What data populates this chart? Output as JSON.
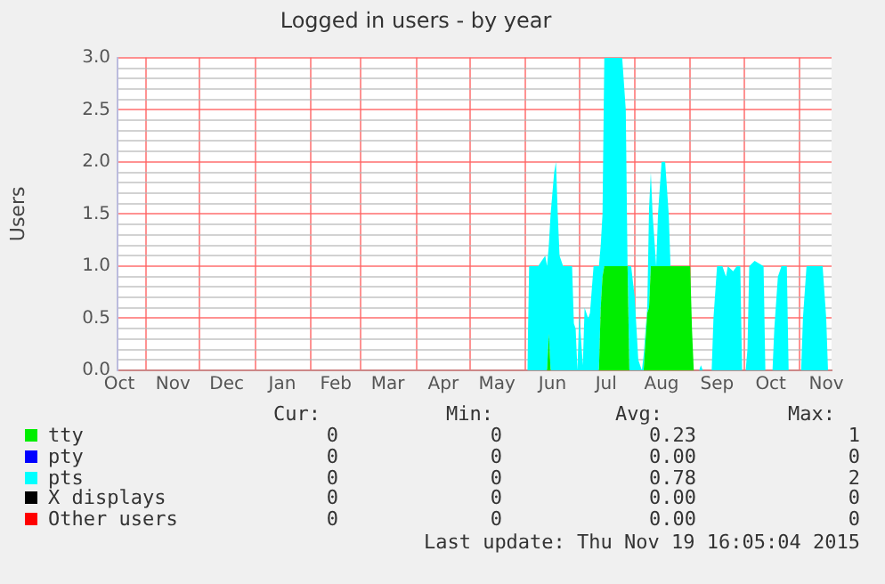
{
  "chart_data": {
    "type": "area",
    "title": "Logged in users - by year",
    "ylabel": "Users",
    "stacked": true,
    "grid": true,
    "legend": "bottom",
    "xlim": [
      "2014-10-16",
      "2015-11-19"
    ],
    "xticks": [
      {
        "value": "2014-10-17",
        "label": "Oct"
      },
      {
        "value": "2014-11-01",
        "label": null
      },
      {
        "value": "2014-11-16",
        "label": "Nov"
      },
      {
        "value": "2014-12-01",
        "label": null
      },
      {
        "value": "2014-12-16",
        "label": "Dec"
      },
      {
        "value": "2015-01-01",
        "label": null
      },
      {
        "value": "2015-01-16",
        "label": "Jan"
      },
      {
        "value": "2015-02-01",
        "label": null
      },
      {
        "value": "2015-02-15",
        "label": "Feb"
      },
      {
        "value": "2015-03-01",
        "label": null
      },
      {
        "value": "2015-03-16",
        "label": "Mar"
      },
      {
        "value": "2015-04-01",
        "label": null
      },
      {
        "value": "2015-04-16",
        "label": "Apr"
      },
      {
        "value": "2015-05-01",
        "label": null
      },
      {
        "value": "2015-05-16",
        "label": "May"
      },
      {
        "value": "2015-06-01",
        "label": null
      },
      {
        "value": "2015-06-16",
        "label": "Jun"
      },
      {
        "value": "2015-07-01",
        "label": null
      },
      {
        "value": "2015-07-16",
        "label": "Jul"
      },
      {
        "value": "2015-08-01",
        "label": null
      },
      {
        "value": "2015-08-16",
        "label": "Aug"
      },
      {
        "value": "2015-09-01",
        "label": null
      },
      {
        "value": "2015-09-16",
        "label": "Sep"
      },
      {
        "value": "2015-10-01",
        "label": null
      },
      {
        "value": "2015-10-16",
        "label": "Oct"
      },
      {
        "value": "2015-11-01",
        "label": null
      },
      {
        "value": "2015-11-16",
        "label": "Nov"
      }
    ],
    "ylim": [
      0,
      3
    ],
    "yticks": [
      {
        "value": 0,
        "label": "0.0"
      },
      {
        "value": 0.1,
        "label": null
      },
      {
        "value": 0.2,
        "label": null
      },
      {
        "value": 0.3,
        "label": null
      },
      {
        "value": 0.4,
        "label": null
      },
      {
        "value": 0.5,
        "label": "0.5"
      },
      {
        "value": 0.6,
        "label": null
      },
      {
        "value": 0.7,
        "label": null
      },
      {
        "value": 0.8,
        "label": null
      },
      {
        "value": 0.9,
        "label": null
      },
      {
        "value": 1,
        "label": "1.0"
      },
      {
        "value": 1.1,
        "label": null
      },
      {
        "value": 1.2,
        "label": null
      },
      {
        "value": 1.3,
        "label": null
      },
      {
        "value": 1.4,
        "label": null
      },
      {
        "value": 1.5,
        "label": "1.5"
      },
      {
        "value": 1.6,
        "label": null
      },
      {
        "value": 1.7,
        "label": null
      },
      {
        "value": 1.8,
        "label": null
      },
      {
        "value": 1.9,
        "label": null
      },
      {
        "value": 2,
        "label": "2.0"
      },
      {
        "value": 2.1,
        "label": null
      },
      {
        "value": 2.2,
        "label": null
      },
      {
        "value": 2.3,
        "label": null
      },
      {
        "value": 2.4,
        "label": null
      },
      {
        "value": 2.5,
        "label": "2.5"
      },
      {
        "value": 2.6,
        "label": null
      },
      {
        "value": 2.7,
        "label": null
      },
      {
        "value": 2.8,
        "label": null
      },
      {
        "value": 2.9,
        "label": null
      },
      {
        "value": 3,
        "label": "3.0"
      }
    ],
    "x": [
      "2015-06-02",
      "2015-06-03",
      "2015-06-08",
      "2015-06-10",
      "2015-06-12",
      "2015-06-13",
      "2015-06-14",
      "2015-06-15",
      "2015-06-17",
      "2015-06-18",
      "2015-06-19",
      "2015-06-20",
      "2015-06-22",
      "2015-06-27",
      "2015-06-28",
      "2015-06-29",
      "2015-06-30",
      "2015-07-01",
      "2015-07-03",
      "2015-07-04",
      "2015-07-06",
      "2015-07-07",
      "2015-07-09",
      "2015-07-12",
      "2015-07-13",
      "2015-07-14",
      "2015-07-15",
      "2015-07-25",
      "2015-07-27",
      "2015-07-28",
      "2015-07-29",
      "2015-07-30",
      "2015-08-01",
      "2015-08-02",
      "2015-08-03",
      "2015-08-05",
      "2015-08-06",
      "2015-08-08",
      "2015-08-09",
      "2015-08-10",
      "2015-08-11",
      "2015-08-13",
      "2015-08-14",
      "2015-08-16",
      "2015-08-18",
      "2015-08-20",
      "2015-08-21",
      "2015-09-01",
      "2015-09-02",
      "2015-09-03",
      "2015-09-06",
      "2015-09-07",
      "2015-09-08",
      "2015-09-13",
      "2015-09-14",
      "2015-09-16",
      "2015-09-19",
      "2015-09-21",
      "2015-09-22",
      "2015-09-25",
      "2015-09-27",
      "2015-09-29",
      "2015-09-30",
      "2015-10-02",
      "2015-10-03",
      "2015-10-04",
      "2015-10-07",
      "2015-10-12",
      "2015-10-13",
      "2015-10-17",
      "2015-10-18",
      "2015-10-20",
      "2015-10-22",
      "2015-10-25",
      "2015-10-26",
      "2015-11-02",
      "2015-11-03",
      "2015-11-05",
      "2015-11-14",
      "2015-11-16",
      "2015-11-17",
      "2015-11-19"
    ],
    "series": [
      {
        "name": "tty",
        "color": "#00ee00",
        "values": [
          0,
          0,
          0,
          0,
          0,
          0,
          0.35,
          0,
          0,
          0,
          0,
          0,
          0,
          0,
          0,
          0,
          0,
          0,
          0,
          0,
          0,
          0,
          0,
          0,
          0.6,
          0.9,
          1,
          1,
          1,
          1,
          0,
          0,
          0,
          0,
          0,
          0,
          0,
          0.55,
          0.6,
          1,
          1,
          1,
          1,
          1,
          1,
          1,
          1,
          1,
          0.4,
          0,
          0,
          0,
          0,
          0,
          0,
          0,
          0,
          0,
          0,
          0,
          0,
          0,
          0,
          0,
          0,
          0,
          0,
          0,
          0,
          0,
          0,
          0,
          0,
          0,
          0,
          0,
          0,
          0,
          0,
          0,
          0,
          0
        ]
      },
      {
        "name": "pty",
        "color": "#0000ff",
        "values": [
          null,
          null,
          null,
          null,
          null,
          null,
          null,
          null,
          null,
          null,
          null,
          null,
          null,
          null,
          null,
          null,
          null,
          null,
          null,
          null,
          null,
          null,
          null,
          null,
          null,
          null,
          null,
          null,
          null,
          null,
          null,
          null,
          null,
          null,
          null,
          null,
          null,
          null,
          null,
          null,
          null,
          null,
          null,
          null,
          null,
          null,
          null,
          null,
          null,
          null,
          null,
          null,
          null,
          null,
          null,
          null,
          null,
          null,
          null,
          null,
          null,
          null,
          null,
          null,
          null,
          null,
          null,
          null,
          null,
          null,
          null,
          null,
          null,
          null,
          null,
          null,
          null,
          null,
          null,
          null,
          null,
          null
        ]
      },
      {
        "name": "pts",
        "color": "#00ffff",
        "values": [
          0,
          1,
          1,
          1.05,
          1.1,
          1,
          0.85,
          1.5,
          1.9,
          2,
          1.5,
          1.1,
          1,
          1,
          0.45,
          0.4,
          0,
          0.55,
          0.05,
          0.6,
          0.5,
          0.55,
          1,
          1,
          0.6,
          0.6,
          2,
          2,
          1.5,
          0,
          1,
          1,
          0.7,
          0.4,
          0.1,
          0,
          0.15,
          0.05,
          0.95,
          0.9,
          0.5,
          0,
          0.5,
          1,
          1,
          0.5,
          0,
          0,
          0,
          0,
          0,
          0.05,
          0,
          0,
          0.5,
          1,
          1,
          0.9,
          1,
          0.95,
          1,
          1,
          0,
          0,
          0.2,
          1,
          1.05,
          1,
          0,
          0,
          0.4,
          0.9,
          1,
          1,
          0,
          0,
          0.5,
          1,
          1,
          0.5,
          0,
          0
        ]
      },
      {
        "name": "X displays",
        "color": "#000000",
        "values": [
          null,
          null,
          null,
          null,
          null,
          null,
          null,
          null,
          null,
          null,
          null,
          null,
          null,
          null,
          null,
          null,
          null,
          null,
          null,
          null,
          null,
          null,
          null,
          null,
          null,
          null,
          null,
          null,
          null,
          null,
          null,
          null,
          null,
          null,
          null,
          null,
          null,
          null,
          null,
          null,
          null,
          null,
          null,
          null,
          null,
          null,
          null,
          null,
          null,
          null,
          null,
          null,
          null,
          null,
          null,
          null,
          null,
          null,
          null,
          null,
          null,
          null,
          null,
          null,
          null,
          null,
          null,
          null,
          null,
          null,
          null,
          null,
          null,
          null,
          null,
          null,
          null,
          null,
          null,
          null,
          null,
          null
        ]
      },
      {
        "name": "Other users",
        "color": "#ff0000",
        "values": [
          null,
          null,
          null,
          null,
          null,
          null,
          null,
          null,
          null,
          null,
          null,
          null,
          null,
          null,
          null,
          null,
          null,
          null,
          null,
          null,
          null,
          null,
          null,
          null,
          null,
          null,
          null,
          null,
          null,
          null,
          null,
          null,
          null,
          null,
          null,
          null,
          null,
          null,
          null,
          null,
          null,
          null,
          null,
          null,
          null,
          null,
          null,
          null,
          null,
          null,
          null,
          null,
          null,
          null,
          null,
          null,
          null,
          null,
          null,
          null,
          null,
          null,
          null,
          null,
          null,
          null,
          null,
          null,
          null,
          null,
          null,
          null,
          null,
          null,
          null,
          null,
          null,
          null,
          null,
          null,
          null,
          null
        ]
      }
    ],
    "annotations": [
      "Cur:",
      "Min:",
      "Avg:",
      "Max:",
      "0",
      "0",
      "0.23",
      "1",
      "0",
      "0",
      "0.00",
      "0",
      "0",
      "0",
      "0.78",
      "2",
      "0",
      "0",
      "0.00",
      "0",
      "0",
      "0",
      "0.00",
      "0",
      "Last update: Thu Nov 19 16:05:04 2015"
    ]
  }
}
